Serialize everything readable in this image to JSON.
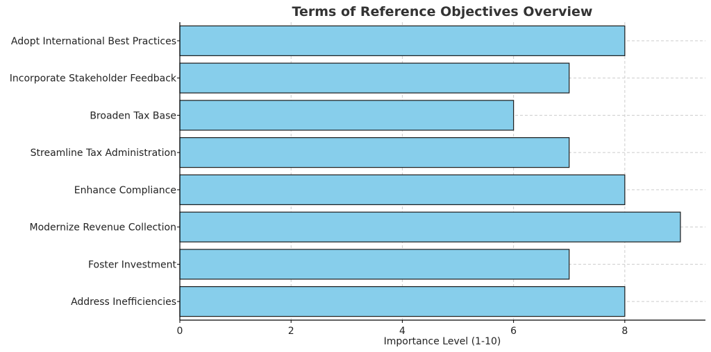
{
  "chart_data": {
    "type": "bar",
    "orientation": "horizontal",
    "title": "Terms of Reference Objectives Overview",
    "xlabel": "Importance Level (1-10)",
    "ylabel": "",
    "categories": [
      "Address Inefficiencies",
      "Foster Investment",
      "Modernize Revenue Collection",
      "Enhance Compliance",
      "Streamline Tax Administration",
      "Broaden Tax Base",
      "Incorporate Stakeholder Feedback",
      "Adopt International Best Practices"
    ],
    "values": [
      8,
      7,
      9,
      8,
      7,
      6,
      7,
      8
    ],
    "xlim": [
      0,
      9.45
    ],
    "xticks": [
      0,
      2,
      4,
      6,
      8
    ],
    "grid": true,
    "grid_style": "dashed",
    "legend": "none",
    "colors": {
      "bar_fill": "#87CEEB",
      "bar_edge": "#1a1a1a",
      "grid": "#cccccc",
      "axis": "#000000",
      "title": "#333333"
    }
  }
}
